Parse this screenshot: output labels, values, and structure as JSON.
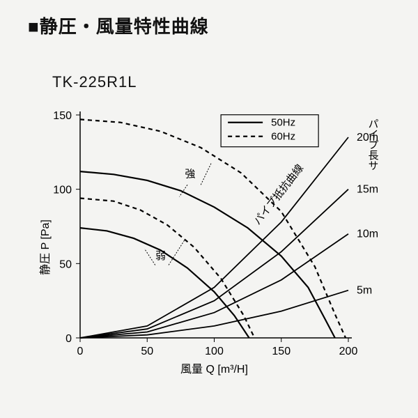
{
  "page_title": "■静圧・風量特性曲線",
  "model": "TK-225R1L",
  "background_color": "#f4f4f2",
  "chart": {
    "type": "line",
    "x": {
      "label": "風量  Q [m³/H]",
      "min": 0,
      "max": 200,
      "tick_step": 50
    },
    "y": {
      "label": "静圧  P [Pa]",
      "min": 0,
      "max": 150,
      "tick_step": 50
    },
    "axis2_label": "パイプ長サ",
    "resistance_label": "パイプ抵抗曲線",
    "legend": {
      "items": [
        {
          "label": "50Hz",
          "dash": "solid"
        },
        {
          "label": "60Hz",
          "dash": "dashed"
        }
      ]
    },
    "annotations": [
      {
        "label": "強"
      },
      {
        "label": "弱"
      }
    ],
    "fan_curves": [
      {
        "name": "50Hz-strong",
        "dash": "solid",
        "points": [
          [
            0,
            112
          ],
          [
            25,
            110
          ],
          [
            50,
            106
          ],
          [
            75,
            99
          ],
          [
            100,
            88
          ],
          [
            125,
            74
          ],
          [
            150,
            55
          ],
          [
            170,
            34
          ],
          [
            183,
            12
          ],
          [
            190,
            0
          ]
        ]
      },
      {
        "name": "50Hz-weak",
        "dash": "solid",
        "points": [
          [
            0,
            74
          ],
          [
            20,
            72
          ],
          [
            40,
            67
          ],
          [
            60,
            59
          ],
          [
            80,
            47
          ],
          [
            100,
            31
          ],
          [
            115,
            15
          ],
          [
            126,
            0
          ]
        ]
      },
      {
        "name": "60Hz-strong",
        "dash": "dashed",
        "points": [
          [
            0,
            147
          ],
          [
            30,
            145
          ],
          [
            60,
            139
          ],
          [
            90,
            128
          ],
          [
            120,
            111
          ],
          [
            150,
            85
          ],
          [
            175,
            48
          ],
          [
            190,
            16
          ],
          [
            198,
            0
          ]
        ]
      },
      {
        "name": "60Hz-weak",
        "dash": "dashed",
        "points": [
          [
            0,
            94
          ],
          [
            25,
            92
          ],
          [
            45,
            86
          ],
          [
            65,
            76
          ],
          [
            85,
            61
          ],
          [
            105,
            40
          ],
          [
            122,
            15
          ],
          [
            130,
            0
          ]
        ]
      }
    ],
    "resistance_curves": [
      {
        "label": "5m",
        "points": [
          [
            0,
            0
          ],
          [
            50,
            2
          ],
          [
            100,
            8
          ],
          [
            150,
            18
          ],
          [
            200,
            32
          ]
        ]
      },
      {
        "label": "10m",
        "points": [
          [
            0,
            0
          ],
          [
            50,
            4
          ],
          [
            100,
            17
          ],
          [
            150,
            39
          ],
          [
            200,
            70
          ]
        ]
      },
      {
        "label": "15m",
        "points": [
          [
            0,
            0
          ],
          [
            50,
            6
          ],
          [
            100,
            25
          ],
          [
            150,
            58
          ],
          [
            200,
            100
          ]
        ]
      },
      {
        "label": "20m",
        "points": [
          [
            0,
            0
          ],
          [
            50,
            8
          ],
          [
            100,
            34
          ],
          [
            150,
            78
          ],
          [
            200,
            135
          ]
        ]
      }
    ],
    "colors": {
      "axis": "#000000",
      "curve": "#000000",
      "text": "#000000"
    },
    "line_widths": {
      "solid": 2.2,
      "dashed": 2.2,
      "resistance": 1.8
    },
    "fontsize": {
      "title": 26,
      "model": 22,
      "tick": 16,
      "axis_label": 16,
      "legend": 15,
      "annotation": 15
    }
  }
}
